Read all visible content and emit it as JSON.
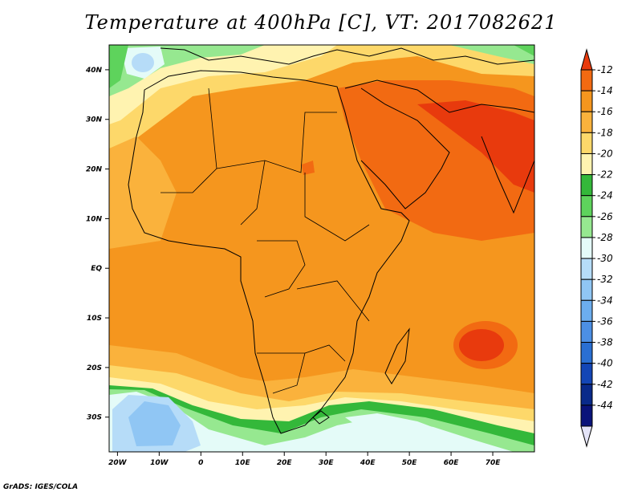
{
  "title": "Temperature at 400hPa [C], VT: 2017082621",
  "footer": "GrADS: IGES/COLA",
  "map": {
    "lon_range": [
      -22,
      80
    ],
    "lat_range": [
      -37,
      45
    ],
    "x_ticks": [
      {
        "value": -20,
        "label": "20W"
      },
      {
        "value": -10,
        "label": "10W"
      },
      {
        "value": 0,
        "label": "0"
      },
      {
        "value": 10,
        "label": "10E"
      },
      {
        "value": 20,
        "label": "20E"
      },
      {
        "value": 30,
        "label": "30E"
      },
      {
        "value": 40,
        "label": "40E"
      },
      {
        "value": 50,
        "label": "50E"
      },
      {
        "value": 60,
        "label": "60E"
      },
      {
        "value": 70,
        "label": "70E"
      }
    ],
    "y_ticks": [
      {
        "value": 40,
        "label": "40N"
      },
      {
        "value": 30,
        "label": "30N"
      },
      {
        "value": 20,
        "label": "20N"
      },
      {
        "value": 10,
        "label": "10N"
      },
      {
        "value": 0,
        "label": "EQ"
      },
      {
        "value": -10,
        "label": "10S"
      },
      {
        "value": -20,
        "label": "20S"
      },
      {
        "value": -30,
        "label": "30S"
      }
    ]
  },
  "colorbar": {
    "labels": [
      "-12",
      "-14",
      "-16",
      "-18",
      "-20",
      "-22",
      "-24",
      "-26",
      "-28",
      "-30",
      "-32",
      "-34",
      "-36",
      "-38",
      "-40",
      "-42",
      "-44"
    ],
    "colors": [
      "#e83a0d",
      "#f26a12",
      "#f5961e",
      "#fab23c",
      "#fdd86a",
      "#fff3b0",
      "#34b83a",
      "#5ed35c",
      "#96e890",
      "#e4fbf8",
      "#b6dcf8",
      "#90c6f4",
      "#6cadee",
      "#4c8fe4",
      "#2a6fd2",
      "#1346b6",
      "#092a8a",
      "#0a137a",
      "#e4e4f8"
    ]
  }
}
